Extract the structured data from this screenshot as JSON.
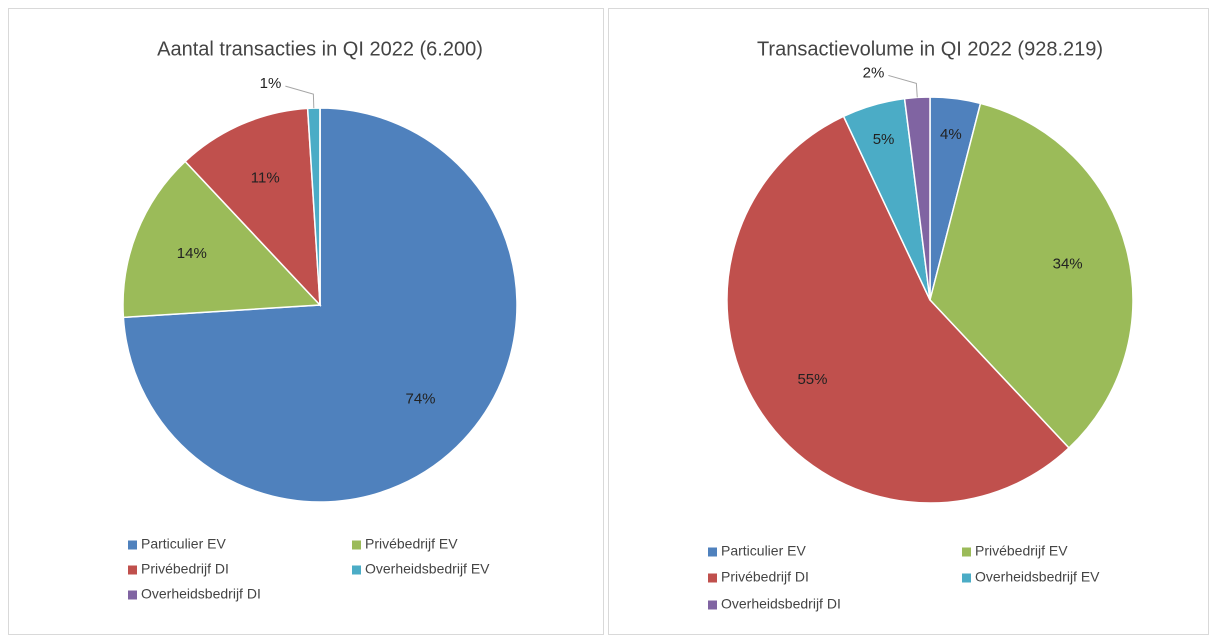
{
  "chart_data": [
    {
      "type": "pie",
      "title": "Aantal transacties in QI 2022 (6.200)",
      "categories": [
        "Particulier EV",
        "Privébedrijf EV",
        "Privébedrijf DI",
        "Overheidsbedrijf EV",
        "Overheidsbedrijf DI"
      ],
      "values": [
        74,
        14,
        11,
        1,
        0
      ],
      "value_labels": [
        "74%",
        "14%",
        "11%",
        "1%",
        null
      ],
      "colors": [
        "#4f81bd",
        "#9bbb59",
        "#c0504d",
        "#4bacc6",
        "#8064a2"
      ]
    },
    {
      "type": "pie",
      "title": "Transactievolume in QI 2022 (928.219)",
      "categories": [
        "Particulier EV",
        "Privébedrijf EV",
        "Privébedrijf DI",
        "Overheidsbedrijf EV",
        "Overheidsbedrijf DI"
      ],
      "values": [
        4,
        34,
        55,
        5,
        2
      ],
      "value_labels": [
        "4%",
        "34%",
        "55%",
        "5%",
        "2%"
      ],
      "colors": [
        "#4f81bd",
        "#9bbb59",
        "#c0504d",
        "#4bacc6",
        "#8064a2"
      ]
    }
  ]
}
